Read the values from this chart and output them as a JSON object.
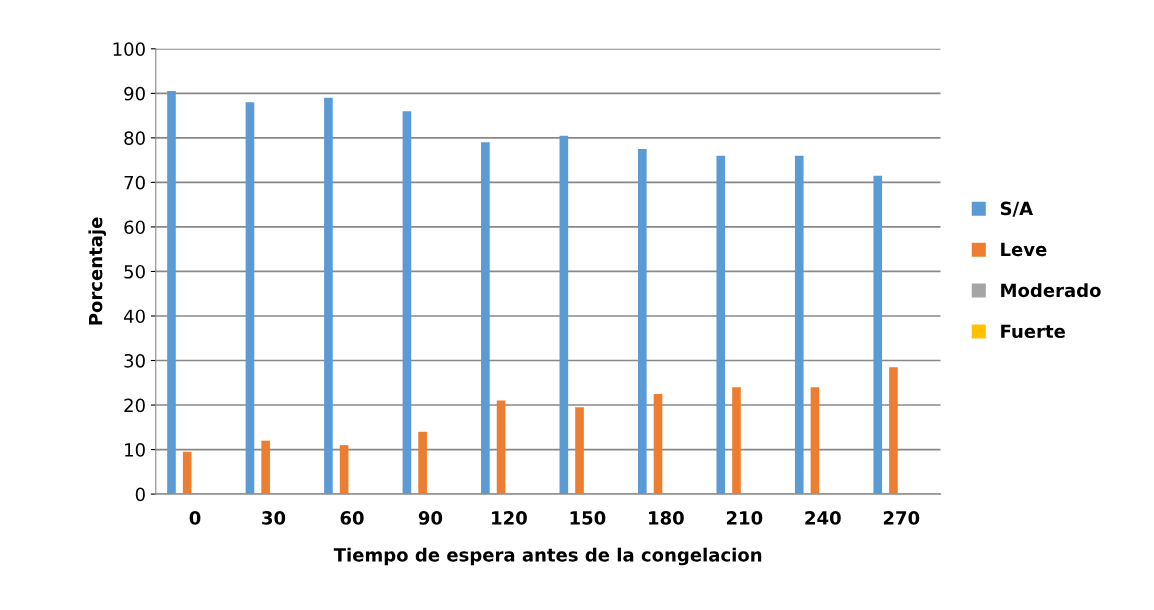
{
  "chart_data": {
    "type": "bar",
    "xlabel": "Tiempo de espera antes de la congelacion",
    "ylabel": "Porcentaje",
    "categories": [
      "0",
      "30",
      "60",
      "90",
      "120",
      "150",
      "180",
      "210",
      "240",
      "270"
    ],
    "series": [
      {
        "name": "S/A",
        "color": "#5b9bd5",
        "values": [
          90.5,
          88,
          89,
          86,
          79,
          80.5,
          77.5,
          76,
          76,
          71.5
        ]
      },
      {
        "name": "Leve",
        "color": "#ed7d31",
        "values": [
          9.5,
          12,
          11,
          14,
          21,
          19.5,
          22.5,
          24,
          24,
          28.5
        ]
      },
      {
        "name": "Moderado",
        "color": "#a5a5a5",
        "values": [
          0,
          0,
          0,
          0,
          0,
          0,
          0,
          0,
          0,
          0
        ]
      },
      {
        "name": "Fuerte",
        "color": "#ffc000",
        "values": [
          0,
          0,
          0,
          0,
          0,
          0,
          0,
          0,
          0,
          0
        ]
      }
    ],
    "ylim": [
      0,
      100
    ],
    "yticks": [
      0,
      10,
      20,
      30,
      40,
      50,
      60,
      70,
      80,
      90,
      100
    ],
    "grid": "y",
    "legend": "right"
  }
}
